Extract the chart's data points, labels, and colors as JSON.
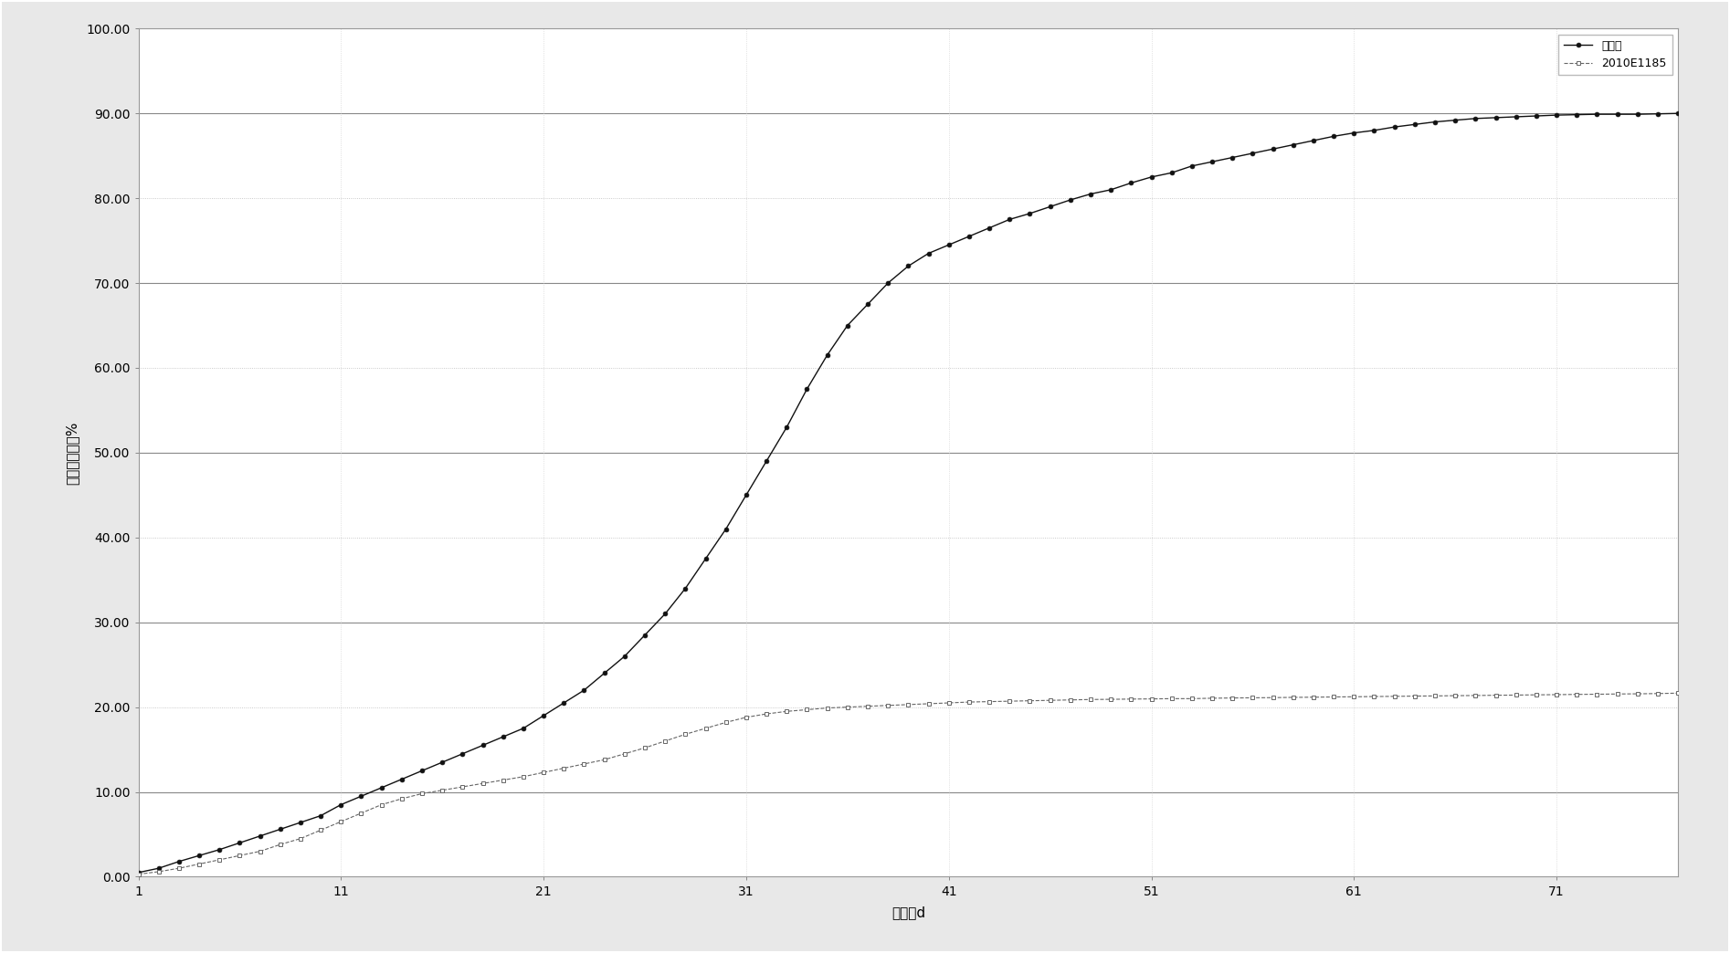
{
  "title": "",
  "xlabel": "天数，d",
  "ylabel": "生物分解率，%",
  "legend_line1": "纤维素",
  "legend_line2": "2010E1185",
  "x_ticks": [
    1,
    11,
    21,
    31,
    41,
    51,
    61,
    71
  ],
  "xlim": [
    1,
    77
  ],
  "ylim": [
    0,
    100
  ],
  "y_ticks": [
    0.0,
    10.0,
    20.0,
    30.0,
    40.0,
    50.0,
    60.0,
    70.0,
    80.0,
    90.0,
    100.0
  ],
  "y_tick_labels": [
    "0.00",
    "10.00",
    "20.00",
    "30.00",
    "40.00",
    "50.00",
    "60.00",
    "70.00",
    "80.00",
    "90.00",
    "100.00"
  ],
  "fig_bg_color": "#e8e8e8",
  "plot_bg_color": "#ffffff",
  "grid_color_major": "#888888",
  "grid_color_minor": "#bbbbbb",
  "line1_color": "#111111",
  "line2_color": "#666666",
  "border_color": "#999999",
  "series1_x": [
    1,
    2,
    3,
    4,
    5,
    6,
    7,
    8,
    9,
    10,
    11,
    12,
    13,
    14,
    15,
    16,
    17,
    18,
    19,
    20,
    21,
    22,
    23,
    24,
    25,
    26,
    27,
    28,
    29,
    30,
    31,
    32,
    33,
    34,
    35,
    36,
    37,
    38,
    39,
    40,
    41,
    42,
    43,
    44,
    45,
    46,
    47,
    48,
    49,
    50,
    51,
    52,
    53,
    54,
    55,
    56,
    57,
    58,
    59,
    60,
    61,
    62,
    63,
    64,
    65,
    66,
    67,
    68,
    69,
    70,
    71,
    72,
    73,
    74,
    75,
    76,
    77
  ],
  "series1_y": [
    0.5,
    1.0,
    1.8,
    2.5,
    3.2,
    4.0,
    4.8,
    5.6,
    6.4,
    7.2,
    8.5,
    9.5,
    10.5,
    11.5,
    12.5,
    13.5,
    14.5,
    15.5,
    16.5,
    17.5,
    19.0,
    20.5,
    22.0,
    24.0,
    26.0,
    28.5,
    31.0,
    34.0,
    37.5,
    41.0,
    45.0,
    49.0,
    53.0,
    57.5,
    61.5,
    65.0,
    67.5,
    70.0,
    72.0,
    73.5,
    74.5,
    75.5,
    76.5,
    77.5,
    78.2,
    79.0,
    79.8,
    80.5,
    81.0,
    81.8,
    82.5,
    83.0,
    83.8,
    84.3,
    84.8,
    85.3,
    85.8,
    86.3,
    86.8,
    87.3,
    87.7,
    88.0,
    88.4,
    88.7,
    89.0,
    89.2,
    89.4,
    89.5,
    89.6,
    89.7,
    89.8,
    89.85,
    89.9,
    89.9,
    89.9,
    89.95,
    90.0
  ],
  "series2_x": [
    1,
    2,
    3,
    4,
    5,
    6,
    7,
    8,
    9,
    10,
    11,
    12,
    13,
    14,
    15,
    16,
    17,
    18,
    19,
    20,
    21,
    22,
    23,
    24,
    25,
    26,
    27,
    28,
    29,
    30,
    31,
    32,
    33,
    34,
    35,
    36,
    37,
    38,
    39,
    40,
    41,
    42,
    43,
    44,
    45,
    46,
    47,
    48,
    49,
    50,
    51,
    52,
    53,
    54,
    55,
    56,
    57,
    58,
    59,
    60,
    61,
    62,
    63,
    64,
    65,
    66,
    67,
    68,
    69,
    70,
    71,
    72,
    73,
    74,
    75,
    76,
    77
  ],
  "series2_y": [
    0.3,
    0.6,
    1.0,
    1.5,
    2.0,
    2.5,
    3.0,
    3.8,
    4.5,
    5.5,
    6.5,
    7.5,
    8.5,
    9.2,
    9.8,
    10.2,
    10.6,
    11.0,
    11.4,
    11.8,
    12.3,
    12.8,
    13.3,
    13.8,
    14.5,
    15.2,
    16.0,
    16.8,
    17.5,
    18.2,
    18.8,
    19.2,
    19.5,
    19.7,
    19.9,
    20.0,
    20.1,
    20.2,
    20.3,
    20.4,
    20.5,
    20.6,
    20.65,
    20.7,
    20.75,
    20.8,
    20.85,
    20.9,
    20.92,
    20.95,
    20.97,
    21.0,
    21.0,
    21.05,
    21.08,
    21.1,
    21.12,
    21.15,
    21.17,
    21.2,
    21.22,
    21.25,
    21.27,
    21.3,
    21.32,
    21.35,
    21.37,
    21.4,
    21.42,
    21.45,
    21.47,
    21.5,
    21.52,
    21.55,
    21.57,
    21.6,
    21.65
  ],
  "solid_grid_lines": [
    10,
    30,
    50,
    70,
    90
  ],
  "dotted_grid_lines": [
    0,
    20,
    40,
    60,
    80,
    100
  ]
}
